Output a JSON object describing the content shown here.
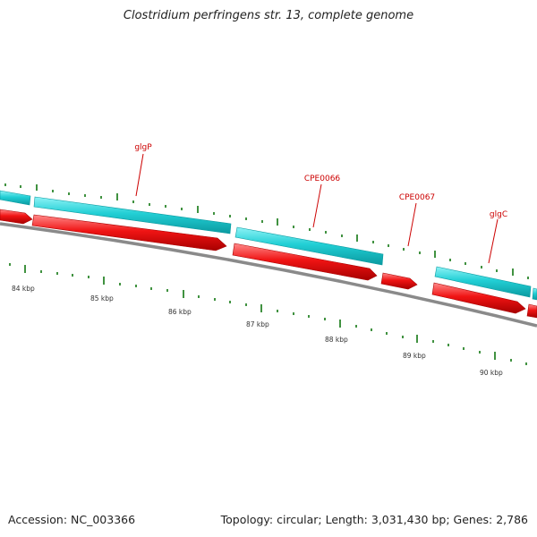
{
  "title": "Clostridium perfringens str. 13, complete genome",
  "footer": {
    "accession": "Accession: NC_003366",
    "summary": "Topology: circular; Length: 3,031,430 bp; Genes: 2,786"
  },
  "colors": {
    "forward_strand": "#1ec9cf",
    "reverse_strand": "#ee1111",
    "backbone": "#7a7a7a",
    "gene_label": "#cc0000",
    "tick": "#117711"
  },
  "genes": [
    {
      "name": "glgP"
    },
    {
      "name": "CPE0066"
    },
    {
      "name": "CPE0067"
    },
    {
      "name": "glgC"
    }
  ],
  "kbp_labels": [
    "84 kbp",
    "85 kbp",
    "86 kbp",
    "87 kbp",
    "88 kbp",
    "89 kbp",
    "90 kbp"
  ]
}
